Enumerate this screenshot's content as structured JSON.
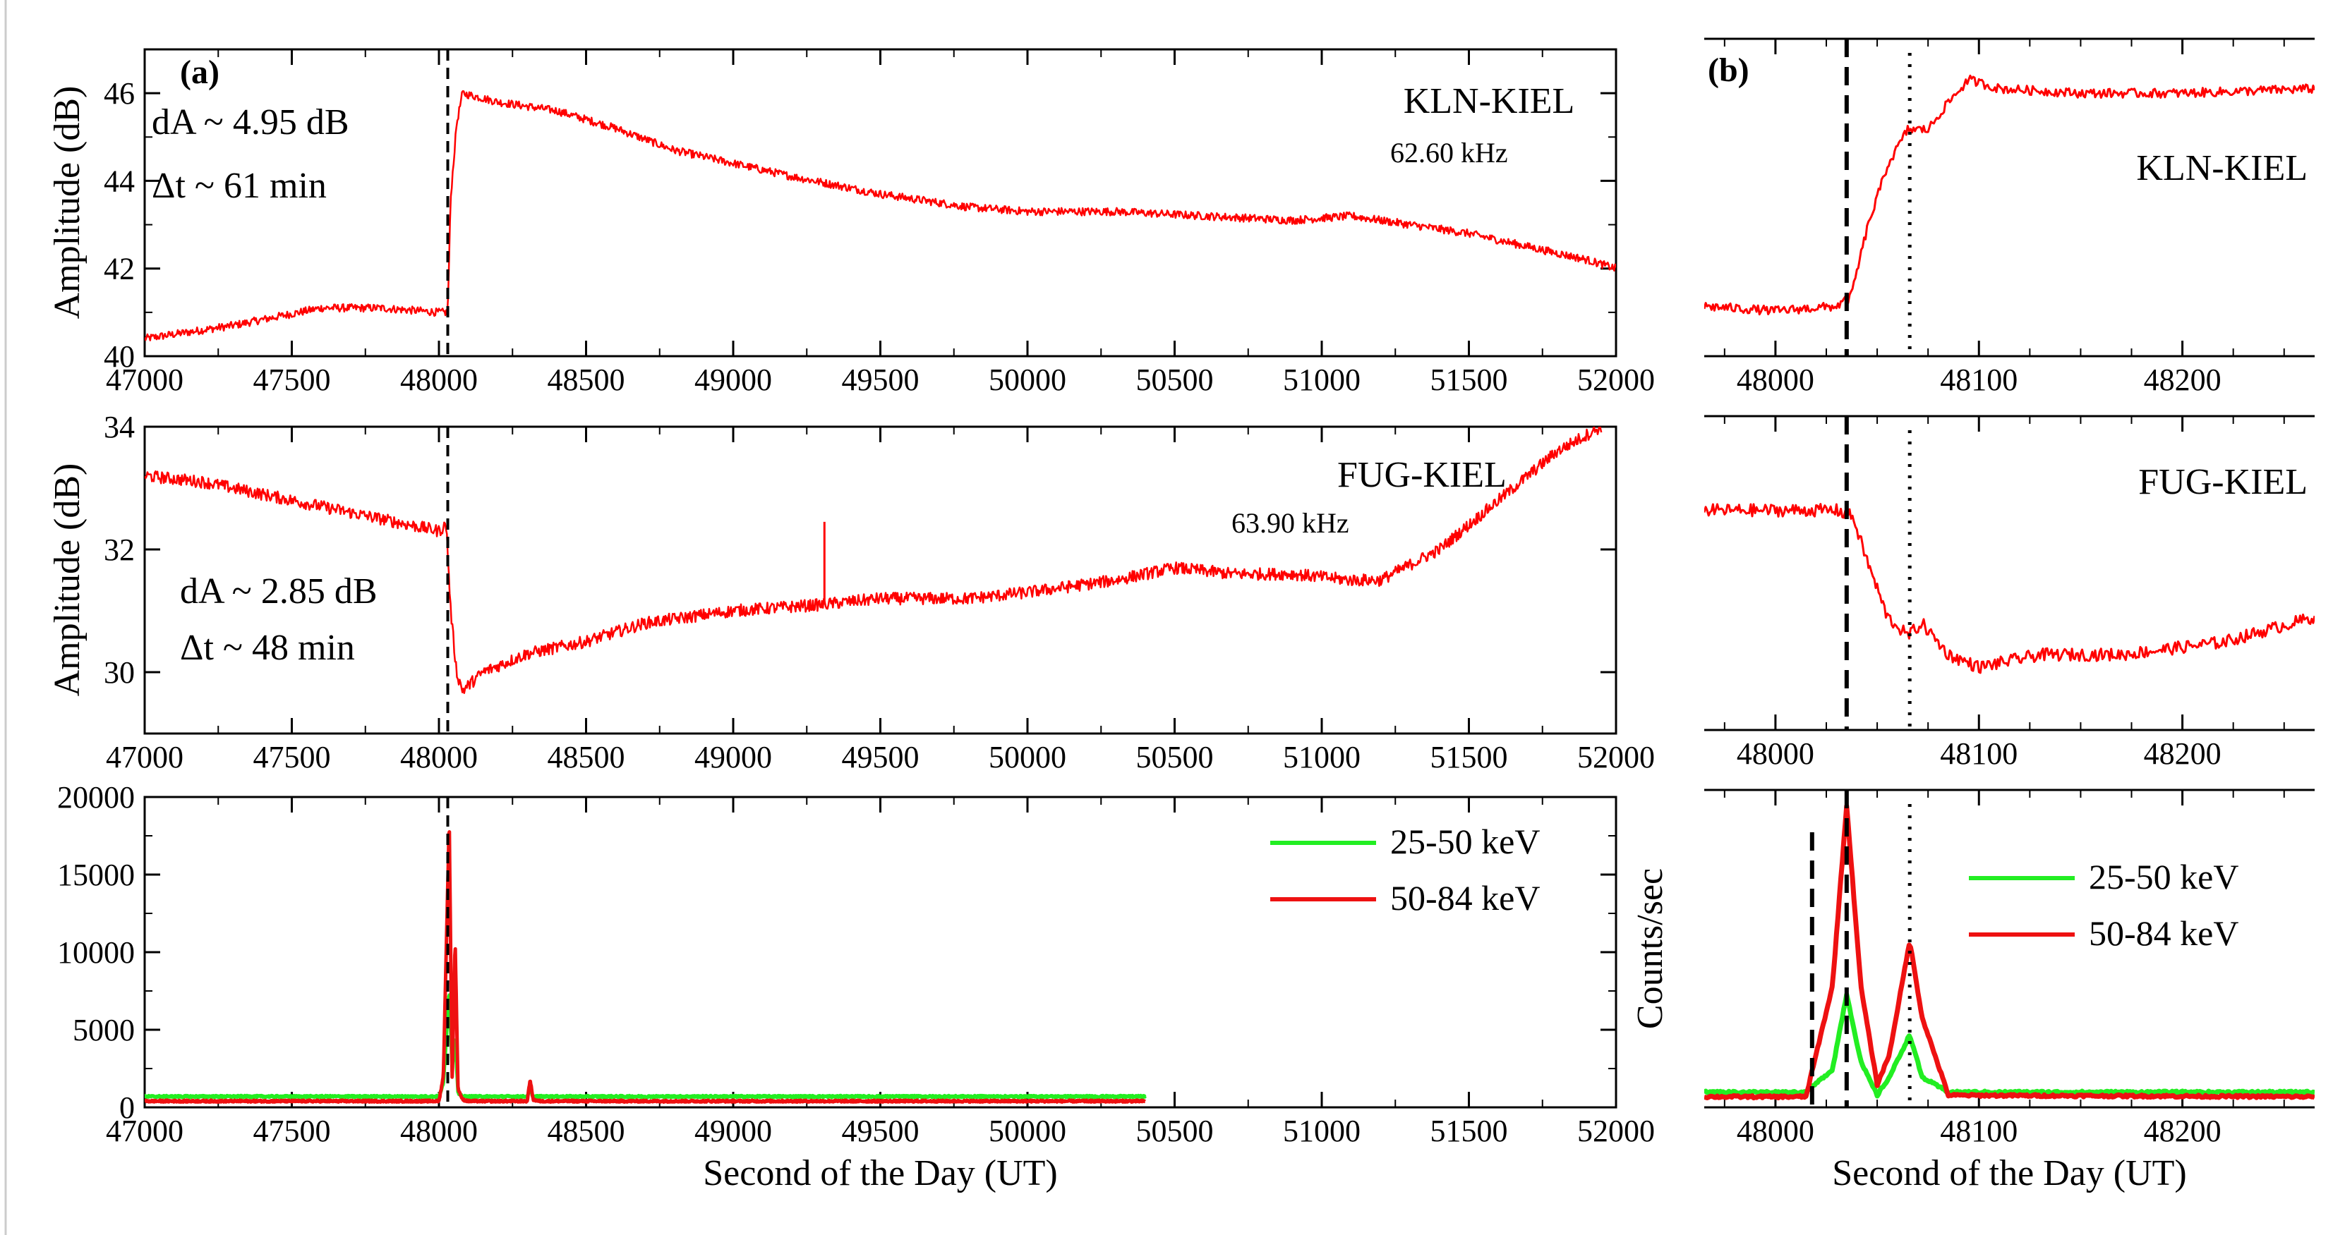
{
  "figure": {
    "panel_a_label": "(a)",
    "panel_b_label": "(b)",
    "x_label": "Second of the Day (UT)",
    "y_label_amplitude": "Amplitude (dB)",
    "y_label_counts": "Counts/sec",
    "colors": {
      "kln": "#ff0000",
      "fug": "#ff0000",
      "green": "#22ee22",
      "red": "#ee1111",
      "axis": "#000000"
    }
  },
  "chart_data": [
    {
      "id": "a1",
      "panel": "a",
      "type": "line",
      "title": "KLN-KIEL",
      "subtitle": "62.60 kHz",
      "annotations": [
        "dA ~ 4.95 dB",
        "Δt ~ 61 min"
      ],
      "xlabel": "",
      "ylabel": "Amplitude (dB)",
      "xlim": [
        47000,
        52000
      ],
      "ylim": [
        40,
        47
      ],
      "xticks": [
        47000,
        47500,
        48000,
        48500,
        49000,
        49500,
        50000,
        50500,
        51000,
        51500,
        52000
      ],
      "yticks": [
        40,
        42,
        44,
        46
      ],
      "vline_dashed": 48030,
      "series": [
        {
          "name": "KLN-KIEL 62.60 kHz",
          "x": [
            47000,
            47300,
            47600,
            47800,
            48000,
            48030,
            48040,
            48060,
            48080,
            48200,
            48400,
            48600,
            48800,
            49000,
            49200,
            49500,
            49800,
            50000,
            50300,
            50600,
            50900,
            51100,
            51300,
            51500,
            51700,
            51900,
            52000
          ],
          "y": [
            40.4,
            40.7,
            41.1,
            41.1,
            41.0,
            41.0,
            43.6,
            45.3,
            46.0,
            45.8,
            45.6,
            45.2,
            44.7,
            44.4,
            44.1,
            43.7,
            43.4,
            43.3,
            43.3,
            43.2,
            43.1,
            43.2,
            43.0,
            42.8,
            42.5,
            42.2,
            42.0
          ]
        }
      ]
    },
    {
      "id": "a2",
      "panel": "a",
      "type": "line",
      "title": "FUG-KIEL",
      "subtitle": "63.90 kHz",
      "annotations": [
        "dA ~ 2.85 dB",
        "Δt ~ 48 min"
      ],
      "xlabel": "",
      "ylabel": "Amplitude (dB)",
      "xlim": [
        47000,
        52000
      ],
      "ylim": [
        29,
        34
      ],
      "xticks": [
        47000,
        47500,
        48000,
        48500,
        49000,
        49500,
        50000,
        50500,
        51000,
        51500,
        52000
      ],
      "yticks": [
        30,
        32,
        34
      ],
      "vline_dashed": 48030,
      "series": [
        {
          "name": "FUG-KIEL 63.90 kHz",
          "x": [
            47000,
            47200,
            47500,
            47800,
            48000,
            48025,
            48040,
            48060,
            48080,
            48150,
            48300,
            48500,
            48700,
            49000,
            49300,
            49500,
            49800,
            50000,
            50300,
            50500,
            50700,
            50900,
            51100,
            51200,
            51400,
            51600,
            51800,
            51950
          ],
          "y": [
            33.2,
            33.1,
            32.8,
            32.5,
            32.3,
            32.4,
            31.0,
            30.0,
            29.7,
            30.0,
            30.3,
            30.5,
            30.8,
            31.0,
            31.1,
            31.2,
            31.2,
            31.3,
            31.5,
            31.7,
            31.6,
            31.6,
            31.5,
            31.5,
            32.0,
            32.8,
            33.6,
            34.0
          ]
        }
      ]
    },
    {
      "id": "a3",
      "panel": "a",
      "type": "line",
      "xlabel": "Second of the Day (UT)",
      "ylabel": "",
      "xlim": [
        47000,
        52000
      ],
      "ylim": [
        0,
        20000
      ],
      "xticks": [
        47000,
        47500,
        48000,
        48500,
        49000,
        49500,
        50000,
        50500,
        51000,
        51500,
        52000
      ],
      "yticks": [
        0,
        5000,
        10000,
        15000,
        20000
      ],
      "vline_dashed": 48030,
      "legend": [
        "25-50 keV",
        "50-84 keV"
      ],
      "series": [
        {
          "name": "25-50 keV",
          "x": [
            47000,
            48000,
            48015,
            48035,
            48045,
            48055,
            48065,
            48080,
            48100,
            48300,
            48310,
            48320,
            48340,
            50400
          ],
          "y": [
            700,
            700,
            1500,
            7500,
            2500,
            4500,
            900,
            700,
            700,
            700,
            1100,
            700,
            700,
            700
          ]
        },
        {
          "name": "50-84 keV",
          "x": [
            47000,
            48000,
            48015,
            48035,
            48045,
            48055,
            48065,
            48080,
            48100,
            48300,
            48310,
            48320,
            48340,
            50400
          ],
          "y": [
            400,
            400,
            2000,
            18500,
            1500,
            10700,
            1200,
            500,
            400,
            400,
            1800,
            500,
            400,
            400
          ]
        }
      ]
    },
    {
      "id": "b1",
      "panel": "b",
      "type": "line",
      "title": "KLN-KIEL",
      "xlim": [
        47965,
        48265
      ],
      "xticks": [
        48000,
        48100,
        48200
      ],
      "vline_dashed": 48035,
      "vline_dotted": 48066,
      "series": [
        {
          "name": "KLN-KIEL zoom",
          "x": [
            47965,
            48000,
            48030,
            48037,
            48045,
            48055,
            48065,
            48075,
            48085,
            48095,
            48110,
            48150,
            48200,
            48265
          ],
          "y": [
            41.1,
            41.0,
            41.1,
            41.3,
            42.8,
            44.2,
            45.0,
            45.0,
            45.6,
            46.1,
            45.9,
            45.8,
            45.8,
            45.9
          ]
        }
      ]
    },
    {
      "id": "b2",
      "panel": "b",
      "type": "line",
      "title": "FUG-KIEL",
      "xlim": [
        47965,
        48265
      ],
      "xticks": [
        48000,
        48100,
        48200
      ],
      "vline_dashed": 48035,
      "vline_dotted": 48066,
      "series": [
        {
          "name": "FUG-KIEL zoom",
          "x": [
            47965,
            48000,
            48030,
            48038,
            48045,
            48055,
            48065,
            48072,
            48085,
            48100,
            48130,
            48170,
            48220,
            48265
          ],
          "y": [
            32.5,
            32.5,
            32.5,
            32.4,
            31.7,
            30.8,
            30.5,
            30.7,
            30.2,
            30.0,
            30.2,
            30.2,
            30.4,
            30.8
          ]
        }
      ]
    },
    {
      "id": "b3",
      "panel": "b",
      "type": "line",
      "xlabel": "Second of the Day (UT)",
      "ylabel": "Counts/sec",
      "xlim": [
        47965,
        48265
      ],
      "xticks": [
        48000,
        48100,
        48200
      ],
      "vline_dashed": 48035,
      "vline_dashed_2": 48018,
      "vline_dotted": 48066,
      "legend": [
        "25-50 keV",
        "50-84 keV"
      ],
      "series": [
        {
          "name": "25-50 keV",
          "x": [
            47965,
            48015,
            48028,
            48035,
            48042,
            48050,
            48056,
            48066,
            48072,
            48085,
            48265
          ],
          "y": [
            1000,
            1000,
            2500,
            7500,
            3000,
            800,
            2000,
            4800,
            2000,
            1000,
            1000
          ]
        },
        {
          "name": "50-84 keV",
          "x": [
            47965,
            48015,
            48028,
            48035,
            48042,
            48050,
            48056,
            48066,
            48072,
            48085,
            48265
          ],
          "y": [
            700,
            700,
            8000,
            20000,
            8000,
            1500,
            3500,
            11000,
            6000,
            800,
            700
          ]
        }
      ]
    }
  ]
}
